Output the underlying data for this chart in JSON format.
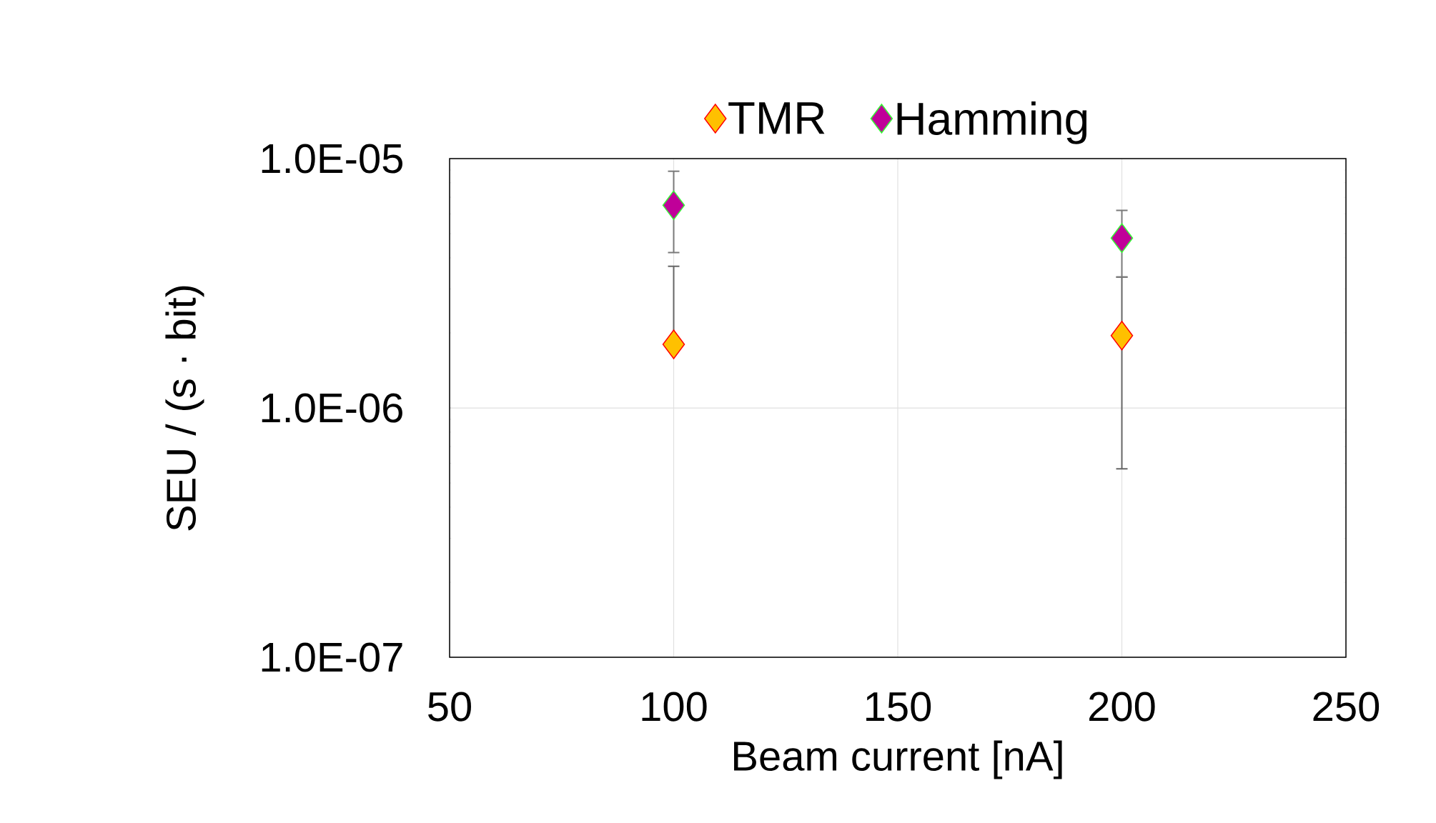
{
  "chart_data": {
    "type": "scatter",
    "xlabel": "Beam current [nA]",
    "ylabel": "SEU / (s · bit)",
    "log": "y",
    "grid": true,
    "legend": "top",
    "marker": "diamond",
    "xlim": [
      50,
      250
    ],
    "xticks": [
      50,
      100,
      150,
      200,
      250
    ],
    "ylim": [
      1e-07,
      1e-05
    ],
    "yticks": [
      {
        "value": 1e-07,
        "label": "1.0E-07"
      },
      {
        "value": 1e-06,
        "label": "1.0E-06"
      },
      {
        "value": 1e-05,
        "label": "1.0E-05"
      }
    ],
    "x": [
      100,
      200
    ],
    "series": [
      {
        "name": "TMR",
        "color": "#ffc000",
        "values": [
          1.8e-06,
          1.95e-06
        ],
        "errors": [
          [
            1.8e-06,
            3.7e-06
          ],
          [
            5.7e-07,
            3.35e-06
          ]
        ]
      },
      {
        "name": "Hamming",
        "color": "#c00099",
        "values": [
          6.5e-06,
          4.8e-06
        ],
        "errors": [
          [
            4.2e-06,
            8.9e-06
          ],
          [
            3.35e-06,
            6.2e-06
          ]
        ]
      }
    ]
  }
}
